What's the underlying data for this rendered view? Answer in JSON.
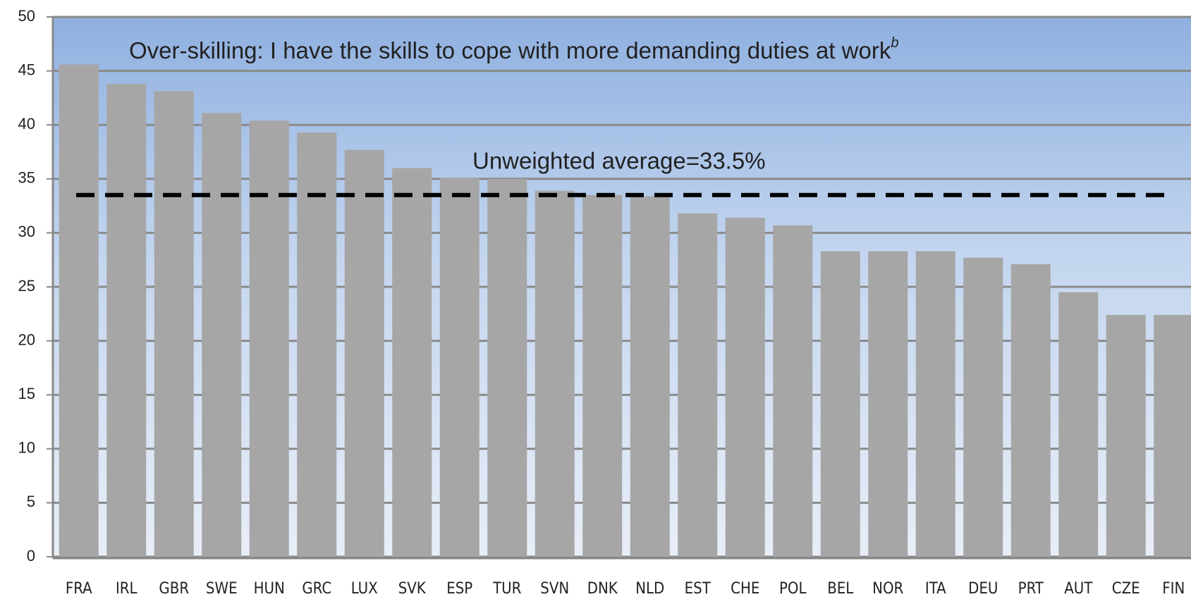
{
  "chart_data": {
    "type": "bar",
    "title": "Over-skilling: I have the skills to cope with more demanding duties at work",
    "title_note": "b",
    "categories": [
      "FRA",
      "IRL",
      "GBR",
      "SWE",
      "HUN",
      "GRC",
      "LUX",
      "SVK",
      "ESP",
      "TUR",
      "SVN",
      "DNK",
      "NLD",
      "EST",
      "CHE",
      "POL",
      "BEL",
      "NOR",
      "ITA",
      "DEU",
      "PRT",
      "AUT",
      "CZE",
      "FIN"
    ],
    "values": [
      45.6,
      43.8,
      43.1,
      41.1,
      40.4,
      39.3,
      37.7,
      36.0,
      35.1,
      35.0,
      33.9,
      33.5,
      33.4,
      31.8,
      31.4,
      30.7,
      28.3,
      28.3,
      28.3,
      27.7,
      27.1,
      24.5,
      22.4,
      22.4
    ],
    "color": "#a6a6a6",
    "average": 33.5,
    "average_label": "Unweighted average=33.5%",
    "ylim": [
      0,
      50
    ],
    "yticks": [
      0,
      5,
      10,
      15,
      20,
      25,
      30,
      35,
      40,
      45,
      50
    ],
    "grid": true
  }
}
